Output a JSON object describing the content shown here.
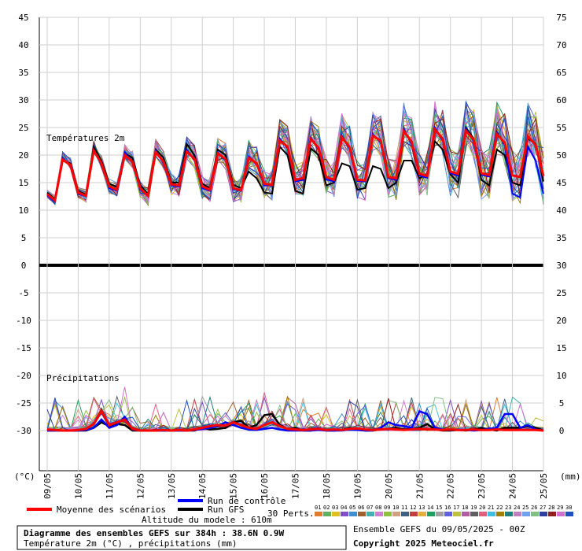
{
  "chart_data": {
    "type": "line",
    "left_axis_unit": "(°C)",
    "right_axis_unit": "(mm)",
    "left_ticks": [
      45,
      40,
      35,
      30,
      25,
      20,
      15,
      10,
      5,
      0,
      -5,
      -10,
      -15,
      -20,
      -25,
      -30
    ],
    "right_ticks": [
      75,
      70,
      65,
      60,
      55,
      50,
      45,
      40,
      35,
      30,
      25,
      20,
      15,
      10,
      5,
      0
    ],
    "ylim": [
      -30,
      45
    ],
    "date_labels": [
      "09/05",
      "10/05",
      "11/05",
      "12/05",
      "13/05",
      "14/05",
      "15/05",
      "16/05",
      "17/05",
      "18/05",
      "19/05",
      "20/05",
      "21/05",
      "22/05",
      "23/05",
      "24/05",
      "25/05"
    ],
    "temperature_label": "Températures 2m",
    "precip_label": "Précipitations",
    "temperature_mean": [
      12.9,
      11.8,
      19.2,
      18.2,
      13.2,
      12.6,
      20.8,
      18.5,
      14.3,
      13.7,
      20.0,
      18.8,
      14.0,
      12.6,
      20.5,
      18.8,
      14.7,
      14.5,
      20.6,
      19.3,
      14.3,
      13.7,
      20.3,
      19.3,
      14.0,
      13.6,
      19.5,
      18.5,
      14.8,
      14.6,
      22.6,
      21.5,
      15.5,
      15.8,
      22.9,
      21.3,
      16.0,
      15.5,
      23.2,
      21.4,
      15.5,
      15.4,
      23.5,
      22.6,
      16.0,
      15.8,
      24.3,
      22.4,
      16.6,
      16.2,
      24.6,
      23.0,
      17.0,
      16.6,
      24.4,
      22.8,
      16.7,
      16.4,
      23.8,
      22.2,
      16.3,
      16.0,
      23.4,
      21.8,
      16.2
    ],
    "temperature_control": [
      12.7,
      11.6,
      19.5,
      18.0,
      13.0,
      12.5,
      21.0,
      18.3,
      14.0,
      13.5,
      20.5,
      18.6,
      13.8,
      12.5,
      20.8,
      18.5,
      14.5,
      14.3,
      21.0,
      19.0,
      14.0,
      13.5,
      20.5,
      19.0,
      13.8,
      13.5,
      19.8,
      18.3,
      14.5,
      14.5,
      23.0,
      21.2,
      15.2,
      15.5,
      23.2,
      21.0,
      15.6,
      15.2,
      23.5,
      21.1,
      15.3,
      15.2,
      23.8,
      22.3,
      15.8,
      15.5,
      24.6,
      22.0,
      16.3,
      15.9,
      25.0,
      22.6,
      16.7,
      16.3,
      24.8,
      22.5,
      16.4,
      16.1,
      24.2,
      21.8,
      13.0,
      12.3,
      21.5,
      19.0,
      13.0
    ],
    "temperature_gfs": [
      13.2,
      12.0,
      19.0,
      18.5,
      13.5,
      12.8,
      21.5,
      19.0,
      14.8,
      14.2,
      20.3,
      19.5,
      14.5,
      13.0,
      21.0,
      19.5,
      15.0,
      15.0,
      22.0,
      20.0,
      14.8,
      14.0,
      21.0,
      20.0,
      14.6,
      14.0,
      17.0,
      15.8,
      13.2,
      13.0,
      21.5,
      20.0,
      13.5,
      13.0,
      21.2,
      20.0,
      14.5,
      15.0,
      18.5,
      18.0,
      13.7,
      14.0,
      18.0,
      17.5,
      14.0,
      15.0,
      19.0,
      19.0,
      15.8,
      16.5,
      22.5,
      21.0,
      16.5,
      15.0,
      25.0,
      23.0,
      15.5,
      14.5,
      21.0,
      20.0,
      15.0,
      14.5,
      23.0,
      22.0,
      15.2
    ],
    "precip_mean": [
      0.2,
      0.1,
      0.0,
      0.0,
      0.1,
      0.3,
      1.2,
      3.5,
      1.0,
      1.5,
      2.0,
      0.3,
      0.0,
      0.0,
      0.0,
      0.1,
      0.0,
      0.1,
      0.0,
      0.2,
      0.5,
      0.8,
      1.0,
      0.9,
      1.5,
      1.0,
      0.5,
      0.3,
      1.0,
      1.5,
      0.8,
      0.3,
      0.2,
      0.1,
      0.2,
      0.3,
      0.1,
      0.2,
      0.1,
      0.3,
      0.4,
      0.2,
      0.1,
      0.2,
      0.3,
      0.2,
      0.1,
      0.2,
      0.3,
      0.2,
      0.2,
      0.1,
      0.2,
      0.1,
      0.1,
      0.2,
      0.1,
      0.1,
      0.2,
      0.1,
      0.1,
      0.1,
      0.1,
      0.1,
      0.0
    ],
    "precip_control": [
      0.0,
      0.0,
      0.0,
      0.0,
      0.0,
      0.1,
      0.5,
      2.0,
      0.5,
      1.0,
      2.5,
      0.2,
      0.0,
      0.0,
      0.0,
      0.0,
      0.0,
      0.0,
      0.0,
      0.1,
      0.3,
      0.5,
      0.8,
      1.5,
      1.0,
      0.5,
      0.2,
      0.1,
      0.3,
      0.5,
      0.2,
      0.0,
      0.0,
      0.0,
      0.0,
      0.1,
      0.0,
      0.0,
      0.0,
      0.2,
      0.1,
      0.0,
      0.0,
      0.5,
      1.5,
      1.0,
      0.8,
      0.5,
      3.5,
      3.0,
      0.5,
      0.2,
      0.1,
      0.2,
      0.1,
      0.0,
      0.1,
      0.3,
      0.5,
      3.0,
      3.0,
      0.5,
      1.0,
      0.2,
      0.0
    ],
    "precip_gfs": [
      0.0,
      0.0,
      0.0,
      0.0,
      0.0,
      0.0,
      0.5,
      1.5,
      0.8,
      1.2,
      1.0,
      0.0,
      0.0,
      0.0,
      0.0,
      0.0,
      0.0,
      0.0,
      0.0,
      0.0,
      0.5,
      0.2,
      0.3,
      0.5,
      1.5,
      1.8,
      0.5,
      1.0,
      2.8,
      3.0,
      1.0,
      0.2,
      0.5,
      0.0,
      0.0,
      0.2,
      0.0,
      0.0,
      0.1,
      0.5,
      0.2,
      0.0,
      0.0,
      0.2,
      0.3,
      0.5,
      0.2,
      0.3,
      0.5,
      1.2,
      0.2,
      0.0,
      0.0,
      0.1,
      0.0,
      0.2,
      0.5,
      0.2,
      0.0,
      0.5,
      0.5,
      0.5,
      0.8,
      0.5,
      0.0
    ],
    "perturbation_count": 30,
    "perturbation_labels": [
      "01",
      "02",
      "03",
      "04",
      "05",
      "06",
      "07",
      "08",
      "09",
      "10",
      "11",
      "12",
      "13",
      "14",
      "15",
      "16",
      "17",
      "18",
      "19",
      "20",
      "21",
      "22",
      "23",
      "24",
      "25",
      "26",
      "27",
      "28",
      "29",
      "30"
    ],
    "perturbation_colors": [
      "#e07c30",
      "#60b060",
      "#e0c020",
      "#8050c0",
      "#4090d0",
      "#a06030",
      "#40b0b0",
      "#d080d0",
      "#90c040",
      "#d0a080",
      "#406080",
      "#c04040",
      "#e0b040",
      "#20a060",
      "#a0a0a0",
      "#6060e0",
      "#c0c040",
      "#b060a0",
      "#606060",
      "#e06080",
      "#40c0e0",
      "#a08000",
      "#208080",
      "#c080c0",
      "#70a0f0",
      "#80c080",
      "#3040a0",
      "#902020",
      "#d070d0",
      "#2050c0"
    ]
  },
  "legend": {
    "mean_label": "Moyenne des scénarios",
    "control_label": "Run de contrôle",
    "gfs_label": "Run GFS",
    "perts_label": "30 Perts.",
    "altitude_label": "Altitude du modele : 610m",
    "mean_color": "#ff0000",
    "control_color": "#0000ff",
    "gfs_color": "#000000"
  },
  "footer": {
    "title": "Diagramme des ensembles GEFS sur 384h : 38.6N 0.9W",
    "subtitle": "Température 2m (°C) , précipitations (mm)",
    "run_info": "Ensemble GEFS du 09/05/2025 - 00Z",
    "copyright": "Copyright 2025 Meteociel.fr"
  }
}
